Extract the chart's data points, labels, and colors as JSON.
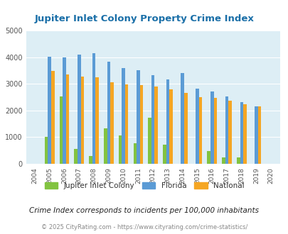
{
  "title": "Jupiter Inlet Colony Property Crime Index",
  "years": [
    2004,
    2005,
    2006,
    2007,
    2008,
    2009,
    2010,
    2011,
    2012,
    2013,
    2014,
    2015,
    2016,
    2017,
    2018,
    2019,
    2020
  ],
  "jupiter": [
    0,
    1020,
    2520,
    560,
    290,
    1320,
    1050,
    760,
    1720,
    720,
    0,
    0,
    480,
    250,
    250,
    0,
    0
  ],
  "florida": [
    0,
    4020,
    4000,
    4100,
    4140,
    3840,
    3580,
    3520,
    3310,
    3150,
    3400,
    2820,
    2710,
    2530,
    2310,
    2160,
    0
  ],
  "national": [
    0,
    3470,
    3360,
    3260,
    3250,
    3060,
    2970,
    2960,
    2900,
    2790,
    2650,
    2490,
    2460,
    2360,
    2230,
    2160,
    0
  ],
  "bar_width": 0.22,
  "ylim": [
    0,
    5000
  ],
  "yticks": [
    0,
    1000,
    2000,
    3000,
    4000,
    5000
  ],
  "color_jupiter": "#82c341",
  "color_florida": "#5b9bd5",
  "color_national": "#f5a623",
  "bg_color": "#ddeef5",
  "title_color": "#1a6fa8",
  "legend_labels": [
    "Jupiter Inlet Colony",
    "Florida",
    "National"
  ],
  "note": "Crime Index corresponds to incidents per 100,000 inhabitants",
  "copyright": "© 2025 CityRating.com - https://www.cityrating.com/crime-statistics/"
}
